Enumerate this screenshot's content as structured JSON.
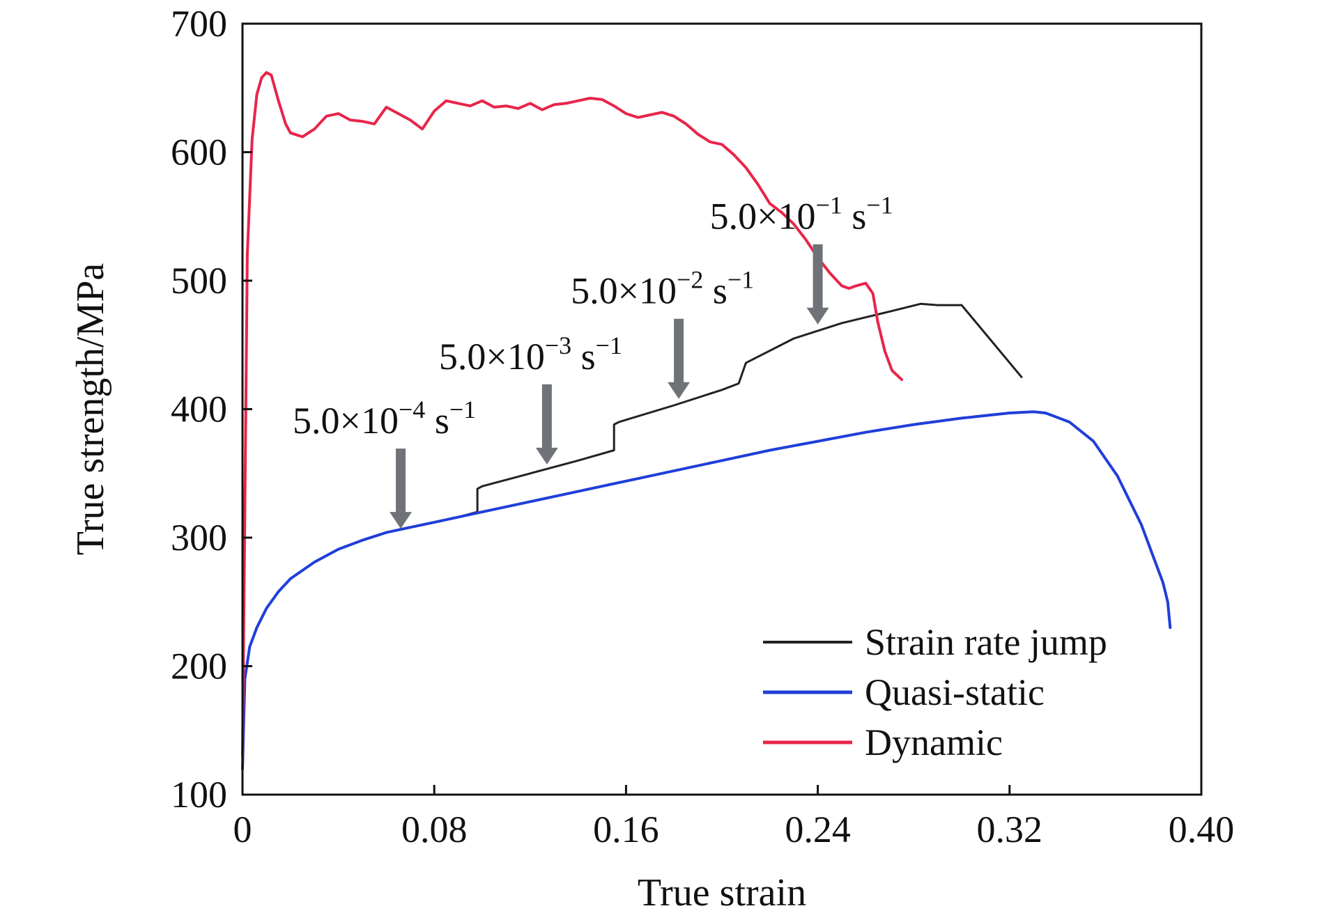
{
  "chart_data": {
    "type": "line",
    "xlabel": "True strain",
    "ylabel": "True strength/MPa",
    "xlim": [
      0,
      0.4
    ],
    "ylim": [
      100,
      700
    ],
    "x_ticks": [
      0,
      0.08,
      0.16,
      0.24,
      0.32,
      0.4
    ],
    "x_tick_labels": [
      "0",
      "0.08",
      "0.16",
      "0.24",
      "0.32",
      "0.40"
    ],
    "y_ticks": [
      100,
      200,
      300,
      400,
      500,
      600,
      700
    ],
    "y_tick_labels": [
      "100",
      "200",
      "300",
      "400",
      "500",
      "600",
      "700"
    ],
    "grid": false,
    "legend_position": "bottom-right",
    "series": [
      {
        "name": "Strain rate jump",
        "color": "#222222",
        "x": [
          0,
          0.001,
          0.003,
          0.006,
          0.01,
          0.015,
          0.02,
          0.03,
          0.04,
          0.05,
          0.06,
          0.07,
          0.08,
          0.09,
          0.098,
          0.098,
          0.1,
          0.12,
          0.14,
          0.155,
          0.155,
          0.157,
          0.18,
          0.2,
          0.207,
          0.21,
          0.23,
          0.25,
          0.27,
          0.283,
          0.29,
          0.3,
          0.325
        ],
        "y": [
          120,
          190,
          215,
          230,
          245,
          258,
          268,
          281,
          291,
          298,
          304,
          308,
          312,
          316,
          320,
          338,
          340,
          350,
          360,
          368,
          388,
          390,
          403,
          415,
          420,
          436,
          455,
          467,
          476,
          482,
          481,
          481,
          425
        ]
      },
      {
        "name": "Quasi-static",
        "color": "#1f3fd8",
        "x": [
          0,
          0.001,
          0.003,
          0.006,
          0.01,
          0.015,
          0.02,
          0.03,
          0.04,
          0.05,
          0.06,
          0.07,
          0.08,
          0.1,
          0.12,
          0.14,
          0.16,
          0.18,
          0.2,
          0.22,
          0.24,
          0.26,
          0.28,
          0.3,
          0.32,
          0.33,
          0.335,
          0.345,
          0.355,
          0.365,
          0.375,
          0.38,
          0.384,
          0.386,
          0.387
        ],
        "y": [
          120,
          190,
          215,
          230,
          245,
          258,
          268,
          281,
          291,
          298,
          304,
          308,
          312,
          320,
          328,
          336,
          344,
          352,
          360,
          368,
          375,
          382,
          388,
          393,
          397,
          398,
          397,
          390,
          375,
          348,
          310,
          285,
          265,
          250,
          230
        ]
      },
      {
        "name": "Dynamic",
        "color": "#e8254a",
        "x": [
          0,
          0.002,
          0.004,
          0.006,
          0.008,
          0.01,
          0.012,
          0.015,
          0.018,
          0.02,
          0.025,
          0.03,
          0.035,
          0.04,
          0.045,
          0.05,
          0.055,
          0.06,
          0.065,
          0.07,
          0.075,
          0.08,
          0.085,
          0.09,
          0.095,
          0.1,
          0.105,
          0.11,
          0.115,
          0.12,
          0.125,
          0.13,
          0.135,
          0.14,
          0.145,
          0.15,
          0.155,
          0.16,
          0.165,
          0.17,
          0.175,
          0.18,
          0.185,
          0.19,
          0.195,
          0.2,
          0.205,
          0.21,
          0.215,
          0.22,
          0.225,
          0.23,
          0.235,
          0.24,
          0.245,
          0.25,
          0.253,
          0.256,
          0.26,
          0.263,
          0.265,
          0.268,
          0.271,
          0.275
        ],
        "y": [
          130,
          520,
          610,
          645,
          658,
          662,
          660,
          640,
          622,
          615,
          612,
          618,
          628,
          630,
          625,
          624,
          622,
          635,
          630,
          625,
          618,
          632,
          640,
          638,
          636,
          640,
          635,
          636,
          634,
          638,
          633,
          637,
          638,
          640,
          642,
          641,
          636,
          630,
          627,
          629,
          631,
          628,
          622,
          614,
          608,
          606,
          598,
          588,
          575,
          560,
          553,
          544,
          532,
          518,
          506,
          496,
          494,
          496,
          498,
          490,
          468,
          445,
          430,
          423
        ]
      }
    ],
    "annotations": [
      {
        "text": "5.0×10",
        "exp": "−4",
        "unit": " s",
        "unit_exp": "−1",
        "arrow_at": [
          0.066,
          307
        ]
      },
      {
        "text": "5.0×10",
        "exp": "−3",
        "unit": " s",
        "unit_exp": "−1",
        "arrow_at": [
          0.127,
          357
        ]
      },
      {
        "text": "5.0×10",
        "exp": "−2",
        "unit": " s",
        "unit_exp": "−1",
        "arrow_at": [
          0.182,
          408
        ]
      },
      {
        "text": "5.0×10",
        "exp": "−1",
        "unit": " s",
        "unit_exp": "−1",
        "arrow_at": [
          0.24,
          466
        ]
      }
    ]
  }
}
